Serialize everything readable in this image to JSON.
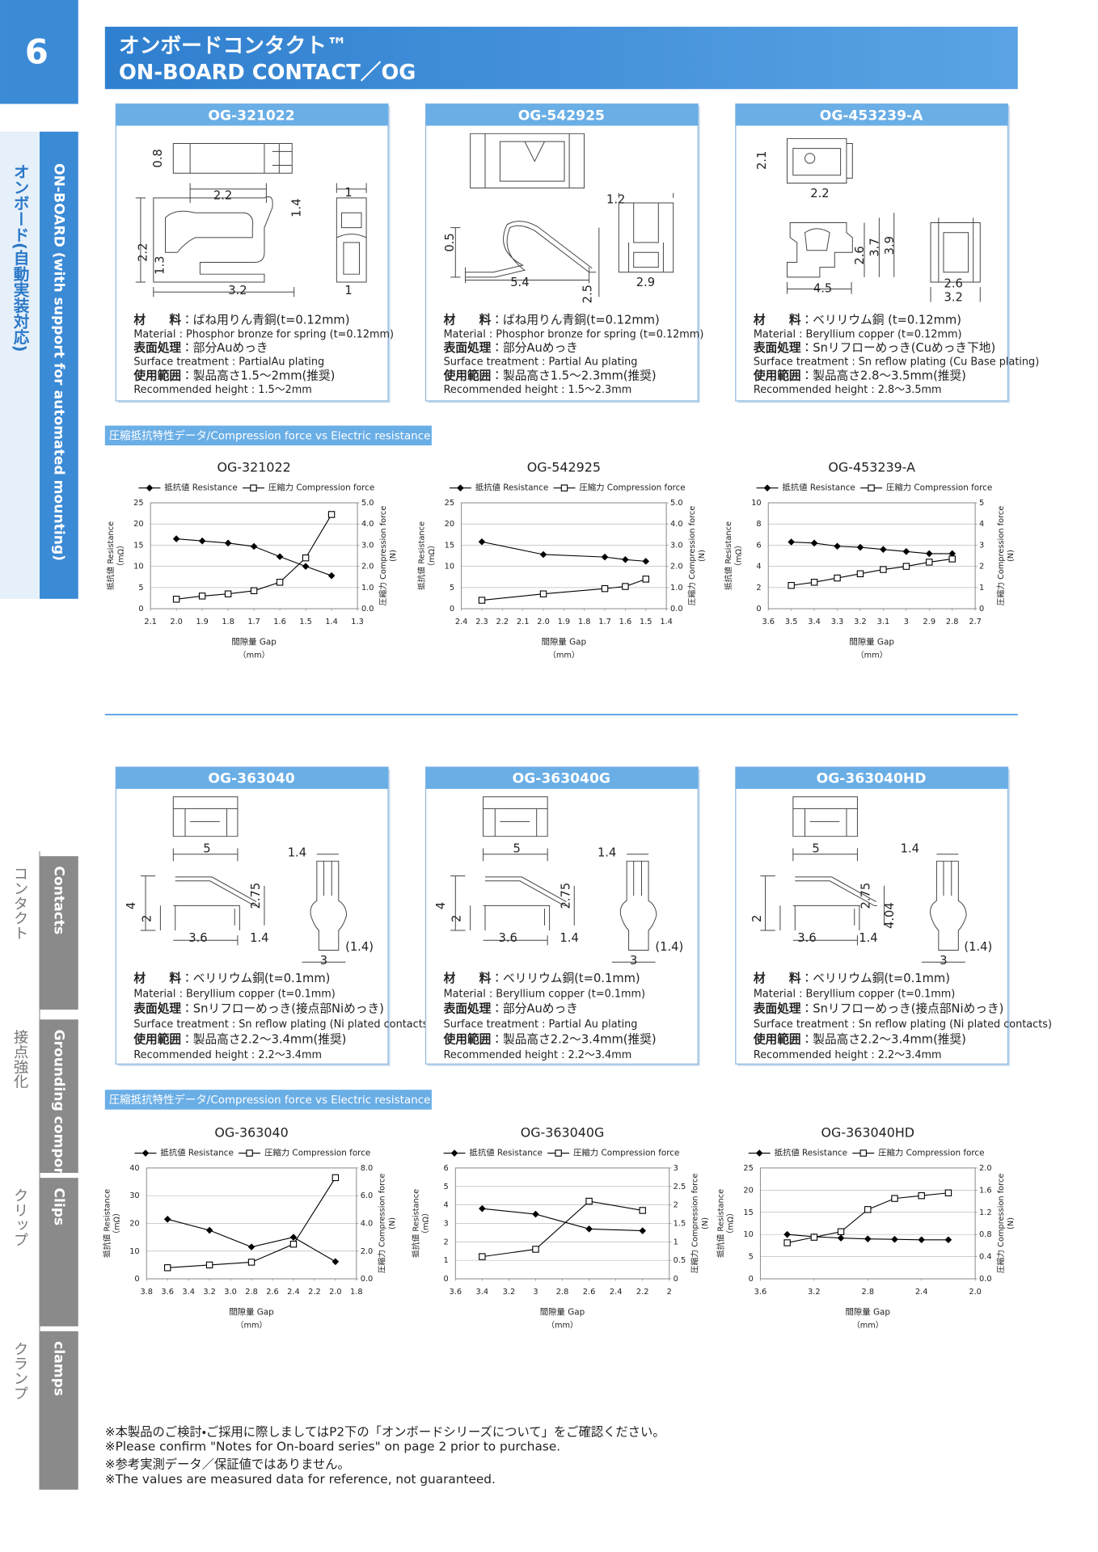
{
  "header": {
    "page_number": "6",
    "title_jp": "オンボードコンタクト™",
    "title_en": "ON-BOARD CONTACT／OG"
  },
  "sidebar": {
    "main_jp": "オンボード(自動実装対応)",
    "main_en": "ON-BOARD (with support for automated mounting)",
    "tabs": [
      {
        "jp": "コンタクト",
        "en": "Contacts"
      },
      {
        "jp": "接点強化",
        "en": "Grounding components"
      },
      {
        "jp": "クリップ",
        "en": "Clips"
      },
      {
        "jp": "クランプ",
        "en": "clamps"
      }
    ]
  },
  "sections": [
    {
      "products": [
        {
          "name": "OG-321022",
          "dims": [
            "0.8",
            "2.2",
            "1",
            "1.4",
            "2.2",
            "1.3",
            "3.2",
            "1"
          ],
          "specs": [
            {
              "label": "材　　料",
              "value": "：ばね用りん青銅(t=0.12mm)",
              "en": "Material : Phosphor bronze for spring (t=0.12mm)"
            },
            {
              "label": "表面処理",
              "value": "：部分Auめっき",
              "en": "Surface treatment : PartialAu plating"
            },
            {
              "label": "使用範囲",
              "value": "：製品高さ1.5～2mm(推奨)",
              "en": "Recommended height : 1.5～2mm"
            }
          ]
        },
        {
          "name": "OG-542925",
          "dims": [
            "0.5",
            "5.4",
            "2.5",
            "1.2",
            "2.9"
          ],
          "specs": [
            {
              "label": "材　　料",
              "value": "：ばね用りん青銅(t=0.12mm)",
              "en": "Material : Phosphor bronze for spring (t=0.12mm)"
            },
            {
              "label": "表面処理",
              "value": "：部分Auめっき",
              "en": "Surface treatment : Partial Au plating"
            },
            {
              "label": "使用範囲",
              "value": "：製品高さ1.5～2.3mm(推奨)",
              "en": "Recommended height : 1.5～2.3mm"
            }
          ]
        },
        {
          "name": "OG-453239-A",
          "dims": [
            "2.1",
            "2.2",
            "2.6",
            "3.7",
            "3.9",
            "4.5",
            "2.6",
            "3.2"
          ],
          "specs": [
            {
              "label": "材　　料",
              "value": "：ベリリウム銅 (t=0.12mm)",
              "en": "Material : Beryllium copper (t=0.12mm)"
            },
            {
              "label": "表面処理",
              "value": "：Snリフローめっき(Cuめっき下地)",
              "en": "Surface treatment : Sn reflow plating (Cu Base plating)"
            },
            {
              "label": "使用範囲",
              "value": "：製品高さ2.8～3.5mm(推奨)",
              "en": "Recommended height : 2.8～3.5mm"
            }
          ]
        }
      ],
      "label": "圧縮抵抗特性データ/Compression force vs Electric resistance",
      "charts": [
        {
          "type": "line",
          "title": "OG-321022",
          "x_label": "間隙量 Gap",
          "x_unit": "（mm）",
          "y_label": "抵抗値 Resistance",
          "y_unit": "（mΩ）",
          "y2_label": "圧縮力 Compression force",
          "y2_unit": "(N)",
          "grid": true,
          "x": [
            2.0,
            1.9,
            1.8,
            1.7,
            1.6,
            1.5,
            1.4
          ],
          "xlim": [
            2.1,
            1.3
          ],
          "xticks": [
            2.1,
            {
              "value": 2,
              "label": "2.0"
            },
            1.9,
            1.8,
            1.7,
            1.6,
            1.5,
            1.4,
            1.3
          ],
          "ylim": [
            0,
            25
          ],
          "yticks": [
            0,
            5,
            10,
            15,
            20,
            25
          ],
          "y2lim": [
            0,
            5
          ],
          "y2ticks": [
            {
              "value": 0,
              "label": "0.0"
            },
            {
              "value": 1,
              "label": "1.0"
            },
            {
              "value": 2,
              "label": "2.0"
            },
            {
              "value": 3,
              "label": "3.0"
            },
            {
              "value": 4,
              "label": "4.0"
            },
            {
              "value": 5,
              "label": "5.0"
            }
          ],
          "series": [
            {
              "name": "抵抗値 Resistance",
              "color": "#000000",
              "marker": "diamond",
              "values": [
                16.5,
                16,
                15.5,
                14.7,
                12.3,
                10,
                7.8
              ]
            },
            {
              "name": "圧縮力 Compression force",
              "color": "#000000",
              "marker": "square",
              "axis": "y2",
              "values": [
                0.45,
                0.6,
                0.7,
                0.85,
                1.25,
                2.4,
                4.45
              ]
            }
          ]
        },
        {
          "type": "line",
          "title": "OG-542925",
          "x_label": "間隙量 Gap",
          "x_unit": "（mm）",
          "y_label": "抵抗値 Resistance",
          "y_unit": "（mΩ）",
          "y2_label": "圧縮力 Compression force",
          "y2_unit": "(N)",
          "grid": true,
          "x": [
            2.3,
            2.0,
            1.7,
            1.6,
            1.5
          ],
          "xlim": [
            2.4,
            1.4
          ],
          "xticks": [
            2.4,
            2.3,
            2.2,
            2.1,
            {
              "value": 2,
              "label": "2.0"
            },
            1.9,
            1.8,
            1.7,
            1.6,
            1.5,
            1.4
          ],
          "ylim": [
            0,
            25
          ],
          "yticks": [
            0,
            5,
            10,
            15,
            20,
            25
          ],
          "y2lim": [
            0,
            5
          ],
          "y2ticks": [
            {
              "value": 0,
              "label": "0.0"
            },
            {
              "value": 1,
              "label": "1.0"
            },
            {
              "value": 2,
              "label": "2.0"
            },
            {
              "value": 3,
              "label": "3.0"
            },
            {
              "value": 4,
              "label": "4.0"
            },
            {
              "value": 5,
              "label": "5.0"
            }
          ],
          "series": [
            {
              "name": "抵抗値 Resistance",
              "color": "#000000",
              "marker": "diamond",
              "values": [
                15.8,
                12.8,
                12.2,
                11.6,
                11.2
              ]
            },
            {
              "name": "圧縮力 Compression force",
              "color": "#000000",
              "marker": "square",
              "axis": "y2",
              "values": [
                0.4,
                0.7,
                0.95,
                1.05,
                1.4
              ]
            }
          ]
        },
        {
          "type": "line",
          "title": "OG-453239-A",
          "x_label": "間隙量 Gap",
          "x_unit": "（mm）",
          "y_label": "抵抗値 Resistance",
          "y_unit": "（mΩ）",
          "y2_label": "圧縮力 Compression force",
          "y2_unit": "(N)",
          "grid": true,
          "x": [
            3.5,
            3.4,
            3.3,
            3.2,
            3.1,
            3.0,
            2.9,
            2.8
          ],
          "xlim": [
            3.6,
            2.7
          ],
          "xticks": [
            3.6,
            3.5,
            3.4,
            3.3,
            3.2,
            3.1,
            3,
            2.9,
            2.8,
            2.7
          ],
          "ylim": [
            0,
            10
          ],
          "yticks": [
            0,
            2,
            4,
            6,
            8,
            10
          ],
          "y2lim": [
            0,
            5
          ],
          "y2ticks": [
            0,
            1,
            2,
            3,
            4,
            5
          ],
          "series": [
            {
              "name": "抵抗値 Resistance",
              "color": "#000000",
              "marker": "diamond",
              "values": [
                6.3,
                6.2,
                5.9,
                5.8,
                5.6,
                5.4,
                5.2,
                5.2
              ]
            },
            {
              "name": "圧縮力 Compression force",
              "color": "#000000",
              "marker": "square",
              "axis": "y2",
              "values": [
                1.1,
                1.25,
                1.45,
                1.65,
                1.85,
                2.0,
                2.2,
                2.35
              ]
            }
          ]
        }
      ]
    },
    {
      "products": [
        {
          "name": "OG-363040",
          "dims": [
            "5",
            "1.4",
            "4",
            "2",
            "2.75",
            "3.6",
            "1.4",
            "3",
            "(1.4)"
          ],
          "specs": [
            {
              "label": "材　　料",
              "value": "：ベリリウム銅(t=0.1mm)",
              "en": "Material : Beryllium copper (t=0.1mm)"
            },
            {
              "label": "表面処理",
              "value": "：Snリフローめっき(接点部Niめっき)",
              "en": "Surface treatment : Sn reflow plating (Ni plated contacts)"
            },
            {
              "label": "使用範囲",
              "value": "：製品高さ2.2～3.4mm(推奨)",
              "en": "Recommended height : 2.2～3.4mm"
            }
          ]
        },
        {
          "name": "OG-363040G",
          "dims": [
            "5",
            "1.4",
            "4",
            "2",
            "2.75",
            "3.6",
            "1.4",
            "3",
            "(1.4)"
          ],
          "specs": [
            {
              "label": "材　　料",
              "value": "：ベリリウム銅(t=0.1mm)",
              "en": "Material : Beryllium copper (t=0.1mm)"
            },
            {
              "label": "表面処理",
              "value": "：部分Auめっき",
              "en": "Surface treatment : Partial Au plating"
            },
            {
              "label": "使用範囲",
              "value": "：製品高さ2.2～3.4mm(推奨)",
              "en": "Recommended height : 2.2～3.4mm"
            }
          ]
        },
        {
          "name": "OG-363040HD",
          "dims": [
            "5",
            "1.4",
            "2",
            "2.75",
            "4.04",
            "3.6",
            "1.4",
            "3",
            "(1.4)"
          ],
          "specs": [
            {
              "label": "材　　料",
              "value": "：ベリリウム銅(t=0.1mm)",
              "en": "Material : Beryllium copper (t=0.1mm)"
            },
            {
              "label": "表面処理",
              "value": "：Snリフローめっき(接点部Niめっき)",
              "en": "Surface treatment : Sn reflow plating (Ni plated contacts)"
            },
            {
              "label": "使用範囲",
              "value": "：製品高さ2.2～3.4mm(推奨)",
              "en": "Recommended height : 2.2～3.4mm"
            }
          ]
        }
      ],
      "label": "圧縮抵抗特性データ/Compression force vs Electric resistance",
      "charts": [
        {
          "type": "line",
          "title": "OG-363040",
          "x_label": "間隙量 Gap",
          "x_unit": "（mm）",
          "y_label": "抵抗値 Resistance",
          "y_unit": "（mΩ）",
          "y2_label": "圧縮力 Compression force",
          "y2_unit": "(N)",
          "grid": true,
          "x": [
            3.6,
            3.2,
            2.8,
            2.4,
            2.0
          ],
          "xlim": [
            3.8,
            1.8
          ],
          "xticks": [
            3.8,
            3.6,
            3.4,
            3.2,
            {
              "value": 3,
              "label": "3.0"
            },
            2.8,
            2.6,
            2.4,
            2.2,
            {
              "value": 2,
              "label": "2.0"
            },
            1.8
          ],
          "ylim": [
            0,
            40
          ],
          "yticks": [
            0,
            10,
            20,
            30,
            40
          ],
          "y2lim": [
            0,
            8
          ],
          "y2ticks": [
            {
              "value": 0,
              "label": "0.0"
            },
            {
              "value": 2,
              "label": "2.0"
            },
            {
              "value": 4,
              "label": "4.0"
            },
            {
              "value": 6,
              "label": "6.0"
            },
            {
              "value": 8,
              "label": "8.0"
            }
          ],
          "series": [
            {
              "name": "抵抗値 Resistance",
              "color": "#000000",
              "marker": "diamond",
              "values": [
                21.5,
                17.5,
                11.5,
                15,
                6.2
              ]
            },
            {
              "name": "圧縮力 Compression force",
              "color": "#000000",
              "marker": "square",
              "axis": "y2",
              "values": [
                0.8,
                1.0,
                1.2,
                2.5,
                7.3
              ]
            }
          ]
        },
        {
          "type": "line",
          "title": "OG-363040G",
          "x_label": "間隙量 Gap",
          "x_unit": "（mm）",
          "y_label": "抵抗値 Resistance",
          "y_unit": "（mΩ）",
          "y2_label": "圧縮力 Compression force",
          "y2_unit": "(N)",
          "grid": true,
          "x": [
            3.4,
            3.0,
            2.6,
            2.2
          ],
          "xlim": [
            3.6,
            2
          ],
          "xticks": [
            3.6,
            3.4,
            3.2,
            3,
            2.8,
            2.6,
            2.4,
            2.2,
            2
          ],
          "ylim": [
            0,
            6
          ],
          "yticks": [
            0,
            1,
            2,
            3,
            4,
            5,
            6
          ],
          "y2lim": [
            0,
            3
          ],
          "y2ticks": [
            0,
            0.5,
            1,
            1.5,
            2,
            2.5,
            3
          ],
          "series": [
            {
              "name": "抵抗値 Resistance",
              "color": "#000000",
              "marker": "diamond",
              "values": [
                3.8,
                3.5,
                2.7,
                2.6
              ]
            },
            {
              "name": "圧縮力 Compression force",
              "color": "#000000",
              "marker": "square",
              "axis": "y2",
              "values": [
                0.6,
                0.8,
                2.1,
                1.85
              ]
            }
          ]
        },
        {
          "type": "line",
          "title": "OG-363040HD",
          "x_label": "間隙量 Gap",
          "x_unit": "（mm）",
          "y_label": "抵抗値 Resistance",
          "y_unit": "（mΩ）",
          "y2_label": "圧縮力 Compression force",
          "y2_unit": "(N)",
          "grid": true,
          "x": [
            3.4,
            3.2,
            3.0,
            2.8,
            2.6,
            2.4,
            2.2
          ],
          "xlim": [
            3.6,
            2
          ],
          "xticks": [
            3.6,
            3.2,
            2.8,
            2.4,
            {
              "value": 2,
              "label": "2.0"
            }
          ],
          "ylim": [
            0,
            25
          ],
          "yticks": [
            0,
            5,
            10,
            15,
            20,
            25
          ],
          "y2lim": [
            0,
            2
          ],
          "y2ticks": [
            {
              "value": 0,
              "label": "0.0"
            },
            0.4,
            0.8,
            1.2,
            1.6,
            {
              "value": 2,
              "label": "2.0"
            }
          ],
          "series": [
            {
              "name": "抵抗値 Resistance",
              "color": "#000000",
              "marker": "diamond",
              "values": [
                10,
                9.5,
                9.2,
                9.0,
                8.9,
                8.8,
                8.8
              ]
            },
            {
              "name": "圧縮力 Compression force",
              "color": "#000000",
              "marker": "square",
              "axis": "y2",
              "values": [
                0.65,
                0.75,
                0.85,
                1.25,
                1.45,
                1.5,
                1.55
              ]
            }
          ]
        }
      ]
    }
  ],
  "footnotes": [
    "※本製品のご検討・ご採用に際しましてはP2下の「オンボードシリーズについて」をご確認ください。",
    "※Please confirm \"Notes for On-board series\" on page 2 prior to purchase.",
    "※参考実測データ／保証値ではありません。",
    "※The values are measured data for reference,  not guaranteed."
  ]
}
